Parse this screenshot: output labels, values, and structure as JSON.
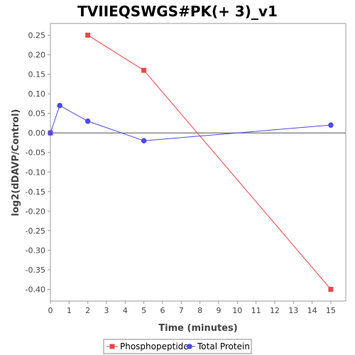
{
  "chart_data": {
    "type": "line",
    "title": "TVIIEQSWGS#PK(+ 3)_v1",
    "xlabel": "Time (minutes)",
    "ylabel": "log2(dDAVP/Control)",
    "xlim": [
      0,
      15.8
    ],
    "ylim": [
      -0.43,
      0.28
    ],
    "x_ticks": [
      0,
      1,
      2,
      3,
      4,
      5,
      6,
      7,
      8,
      9,
      10,
      11,
      12,
      13,
      14,
      15
    ],
    "x_tick_labels": [
      "0",
      "1",
      "2",
      "3",
      "4",
      "5",
      "6",
      "7",
      "8",
      "9",
      "10",
      "11",
      "12",
      "13",
      "14",
      "15"
    ],
    "y_ticks": [
      0.25,
      0.2,
      0.15,
      0.1,
      0.05,
      0.0,
      -0.05,
      -0.1,
      -0.15,
      -0.2,
      -0.25,
      -0.3,
      -0.35,
      -0.4
    ],
    "y_tick_labels": [
      "0.25",
      "0.20",
      "0.15",
      "0.10",
      "0.05",
      "0.00",
      "-0.05",
      "-0.10",
      "-0.15",
      "-0.20",
      "-0.25",
      "-0.30",
      "-0.35",
      "-0.40"
    ],
    "grid": false,
    "zero_line": true,
    "legend_position": "bottom",
    "series": [
      {
        "name": "Phosphopeptide",
        "color": "#e8474a",
        "marker": "square",
        "points": [
          [
            0,
            0.0
          ],
          [
            2,
            0.25
          ],
          [
            5,
            0.16
          ],
          [
            15,
            -0.4
          ]
        ],
        "segments": [
          [
            1,
            2
          ],
          [
            2,
            3
          ]
        ]
      },
      {
        "name": "Total Protein",
        "color": "#4c4ce6",
        "marker": "circle",
        "points": [
          [
            0,
            0.0
          ],
          [
            0.5,
            0.07
          ],
          [
            2,
            0.03
          ],
          [
            5,
            -0.02
          ],
          [
            15,
            0.02
          ]
        ],
        "segments": [
          [
            0,
            1
          ],
          [
            1,
            2
          ],
          [
            2,
            3
          ],
          [
            3,
            4
          ]
        ]
      }
    ]
  }
}
